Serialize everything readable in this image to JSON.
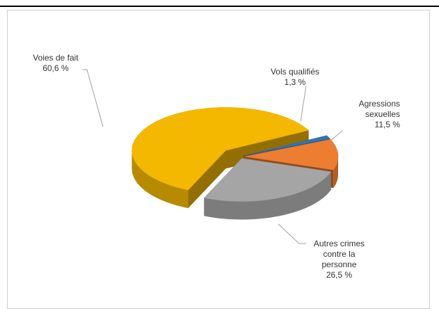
{
  "chart_data": {
    "type": "pie3d",
    "categories": [
      "Vols qualifiés",
      "Agressions sexuelles",
      "Autres crimes contre la personne",
      "Voies de fait"
    ],
    "values": [
      1.3,
      11.5,
      26.5,
      60.6
    ],
    "value_labels": [
      "1,3 %",
      "11,5 %",
      "26,5 %",
      "60,6 %"
    ],
    "colors": [
      "#2e75b6",
      "#ed7d31",
      "#a5a5a5",
      "#f5b800"
    ]
  }
}
